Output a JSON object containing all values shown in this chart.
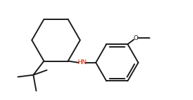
{
  "bg_color": "#ffffff",
  "line_color": "#1a1a1a",
  "hn_color": "#cc2200",
  "o_color": "#1a1a1a",
  "lw": 1.4,
  "fig_width": 2.8,
  "fig_height": 1.45,
  "dpi": 100,
  "xlim": [
    0,
    10
  ],
  "ylim": [
    0,
    5.18
  ]
}
